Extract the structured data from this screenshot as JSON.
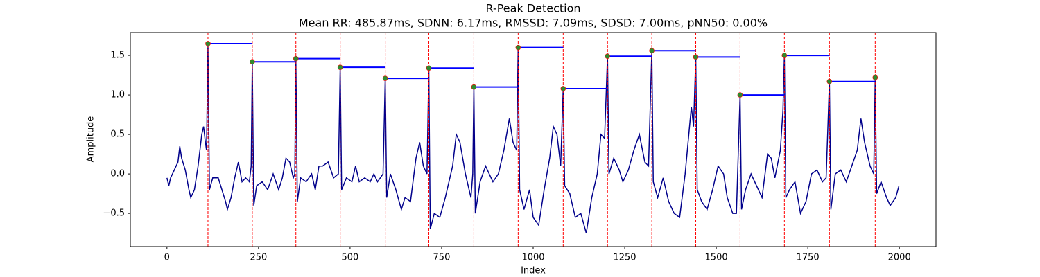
{
  "chart_data": {
    "type": "line",
    "title": "R-Peak Detection",
    "subtitle": "Mean RR: 485.87ms, SDNN: 6.17ms, RMSSD: 7.09ms, SDSD: 7.00ms, pNN50: 0.00%",
    "x_label": "Index",
    "y_label": "Amplitude",
    "xlim": [
      -100,
      2100
    ],
    "ylim": [
      -0.92,
      1.79
    ],
    "xticks": [
      0,
      250,
      500,
      750,
      1000,
      1250,
      1500,
      1750,
      2000
    ],
    "yticks": [
      {
        "value": -0.5,
        "label": "−0.5"
      },
      {
        "value": 0,
        "label": "0.0"
      },
      0.5,
      {
        "value": 1,
        "label": "1.0"
      },
      1.5
    ],
    "grid": false,
    "signal": {
      "color": "#00008b",
      "x": [
        0,
        5,
        10,
        20,
        30,
        35,
        40,
        50,
        60,
        65,
        75,
        85,
        95,
        100,
        105,
        108,
        112,
        116,
        125,
        140,
        150,
        160,
        165,
        175,
        185,
        195,
        205,
        215,
        225,
        230,
        233,
        237,
        245,
        260,
        275,
        290,
        305,
        315,
        325,
        335,
        345,
        349,
        352,
        356,
        365,
        380,
        395,
        405,
        415,
        425,
        440,
        455,
        468,
        473,
        477,
        490,
        505,
        515,
        525,
        540,
        555,
        565,
        575,
        590,
        596,
        600,
        610,
        625,
        640,
        650,
        665,
        680,
        690,
        700,
        710,
        715,
        719,
        730,
        745,
        760,
        780,
        790,
        800,
        815,
        830,
        835,
        838,
        842,
        855,
        870,
        890,
        905,
        920,
        935,
        945,
        955,
        959,
        963,
        975,
        990,
        1000,
        1015,
        1030,
        1045,
        1055,
        1065,
        1075,
        1082,
        1086,
        1100,
        1115,
        1130,
        1145,
        1160,
        1175,
        1185,
        1195,
        1203,
        1207,
        1220,
        1235,
        1245,
        1260,
        1275,
        1290,
        1305,
        1315,
        1324,
        1328,
        1340,
        1355,
        1370,
        1385,
        1400,
        1415,
        1425,
        1432,
        1438,
        1444,
        1448,
        1460,
        1475,
        1490,
        1505,
        1520,
        1530,
        1545,
        1555,
        1565,
        1569,
        1580,
        1595,
        1610,
        1625,
        1640,
        1650,
        1660,
        1675,
        1682,
        1686,
        1690,
        1700,
        1715,
        1730,
        1745,
        1760,
        1775,
        1790,
        1800,
        1809,
        1813,
        1825,
        1840,
        1855,
        1870,
        1885,
        1895,
        1905,
        1920,
        1930,
        1934,
        1938,
        1950,
        1965,
        1975,
        1990,
        1999
      ],
      "values": [
        -0.05,
        -0.15,
        -0.05,
        0.05,
        0.15,
        0.35,
        0.2,
        0.05,
        -0.2,
        -0.3,
        -0.2,
        0.1,
        0.5,
        0.6,
        0.4,
        0.3,
        1.65,
        -0.2,
        -0.05,
        -0.05,
        -0.2,
        -0.35,
        -0.45,
        -0.3,
        -0.05,
        0.15,
        -0.1,
        -0.05,
        -0.1,
        0.1,
        1.42,
        -0.4,
        -0.15,
        -0.1,
        -0.2,
        0.0,
        -0.2,
        -0.05,
        0.2,
        0.15,
        -0.05,
        0.0,
        1.46,
        -0.35,
        -0.05,
        -0.1,
        0.0,
        -0.2,
        0.1,
        0.1,
        0.15,
        -0.05,
        0.0,
        1.35,
        -0.2,
        -0.05,
        -0.1,
        0.1,
        -0.1,
        -0.05,
        -0.1,
        0.0,
        -0.1,
        0.0,
        1.21,
        -0.3,
        0.0,
        -0.2,
        -0.45,
        -0.3,
        -0.35,
        0.2,
        0.4,
        0.1,
        0.0,
        1.34,
        -0.7,
        -0.5,
        -0.55,
        -0.3,
        0.1,
        0.5,
        0.4,
        0.0,
        -0.3,
        0.0,
        1.1,
        -0.5,
        -0.1,
        0.1,
        -0.1,
        0.0,
        0.3,
        0.7,
        0.4,
        0.3,
        1.6,
        -0.2,
        -0.45,
        -0.2,
        -0.55,
        -0.65,
        -0.2,
        0.2,
        0.6,
        0.5,
        0.1,
        1.08,
        -0.15,
        -0.25,
        -0.55,
        -0.5,
        -0.75,
        -0.3,
        0.0,
        0.5,
        0.45,
        1.49,
        0.0,
        0.2,
        0.05,
        -0.1,
        0.05,
        0.3,
        0.5,
        0.15,
        0.1,
        1.56,
        -0.1,
        -0.3,
        -0.05,
        -0.35,
        -0.5,
        -0.55,
        0.0,
        0.5,
        0.85,
        0.6,
        1.48,
        -0.2,
        -0.35,
        -0.45,
        -0.2,
        0.1,
        0.0,
        -0.3,
        -0.5,
        -0.5,
        1.0,
        -0.45,
        -0.2,
        0.0,
        -0.15,
        -0.3,
        0.25,
        0.2,
        -0.05,
        0.3,
        0.8,
        1.5,
        -0.3,
        -0.2,
        -0.1,
        -0.5,
        -0.35,
        0.0,
        0.05,
        -0.1,
        -0.05,
        1.17,
        -0.45,
        0.0,
        0.05,
        -0.1,
        0.1,
        0.3,
        0.7,
        0.4,
        0.1,
        0.0,
        1.22,
        -0.25,
        -0.1,
        -0.3,
        -0.4,
        -0.3,
        -0.15
      ]
    },
    "peaks": {
      "color": "#2e8b2e",
      "vline_color": "#ff0000",
      "interval_color": "#0000ff",
      "x": [
        112,
        233,
        352,
        473,
        596,
        715,
        838,
        959,
        1082,
        1203,
        1324,
        1444,
        1565,
        1686,
        1809,
        1934
      ],
      "values": [
        1.65,
        1.42,
        1.46,
        1.35,
        1.21,
        1.34,
        1.1,
        1.6,
        1.08,
        1.49,
        1.56,
        1.48,
        1.0,
        1.5,
        1.17,
        1.22
      ]
    }
  }
}
